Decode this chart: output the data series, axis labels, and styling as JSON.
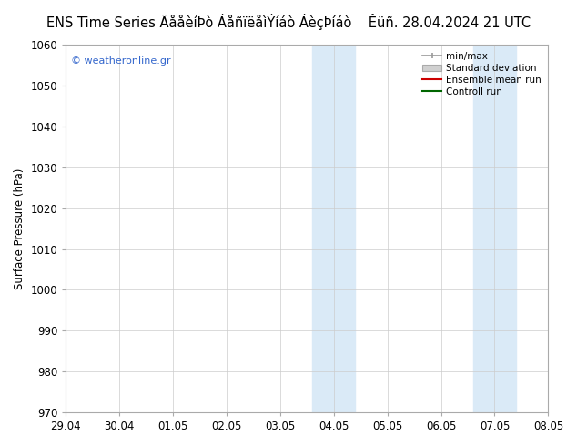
{
  "title": "ENS Time Series ÄååèíÞò ÁåñïëåìÝíáò ÁèçÞíáò    Êüñ. 28.04.2024 21 UTC",
  "ylabel": "Surface Pressure (hPa)",
  "ylim": [
    970,
    1060
  ],
  "yticks": [
    970,
    980,
    990,
    1000,
    1010,
    1020,
    1030,
    1040,
    1050,
    1060
  ],
  "xlabels": [
    "29.04",
    "30.04",
    "01.05",
    "02.05",
    "03.05",
    "04.05",
    "05.05",
    "06.05",
    "07.05",
    "08.05"
  ],
  "x_values": [
    0,
    1,
    2,
    3,
    4,
    5,
    6,
    7,
    8,
    9
  ],
  "shaded_bands": [
    {
      "xmin": 4.5,
      "xmax": 5.0,
      "color": "#daeaf7"
    },
    {
      "xmin": 5.0,
      "xmax": 5.5,
      "color": "#daeaf7"
    },
    {
      "xmin": 7.5,
      "xmax": 8.0,
      "color": "#daeaf7"
    },
    {
      "xmin": 8.0,
      "xmax": 8.5,
      "color": "#daeaf7"
    }
  ],
  "watermark": "© weatheronline.gr",
  "watermark_color": "#3366cc",
  "legend_labels": [
    "min/max",
    "Standard deviation",
    "Ensemble mean run",
    "Controll run"
  ],
  "legend_line_colors": [
    "#999999",
    "#bbbbbb",
    "#cc0000",
    "#006600"
  ],
  "background_color": "#ffffff",
  "title_fontsize": 10.5,
  "tick_fontsize": 8.5,
  "ylabel_fontsize": 8.5
}
